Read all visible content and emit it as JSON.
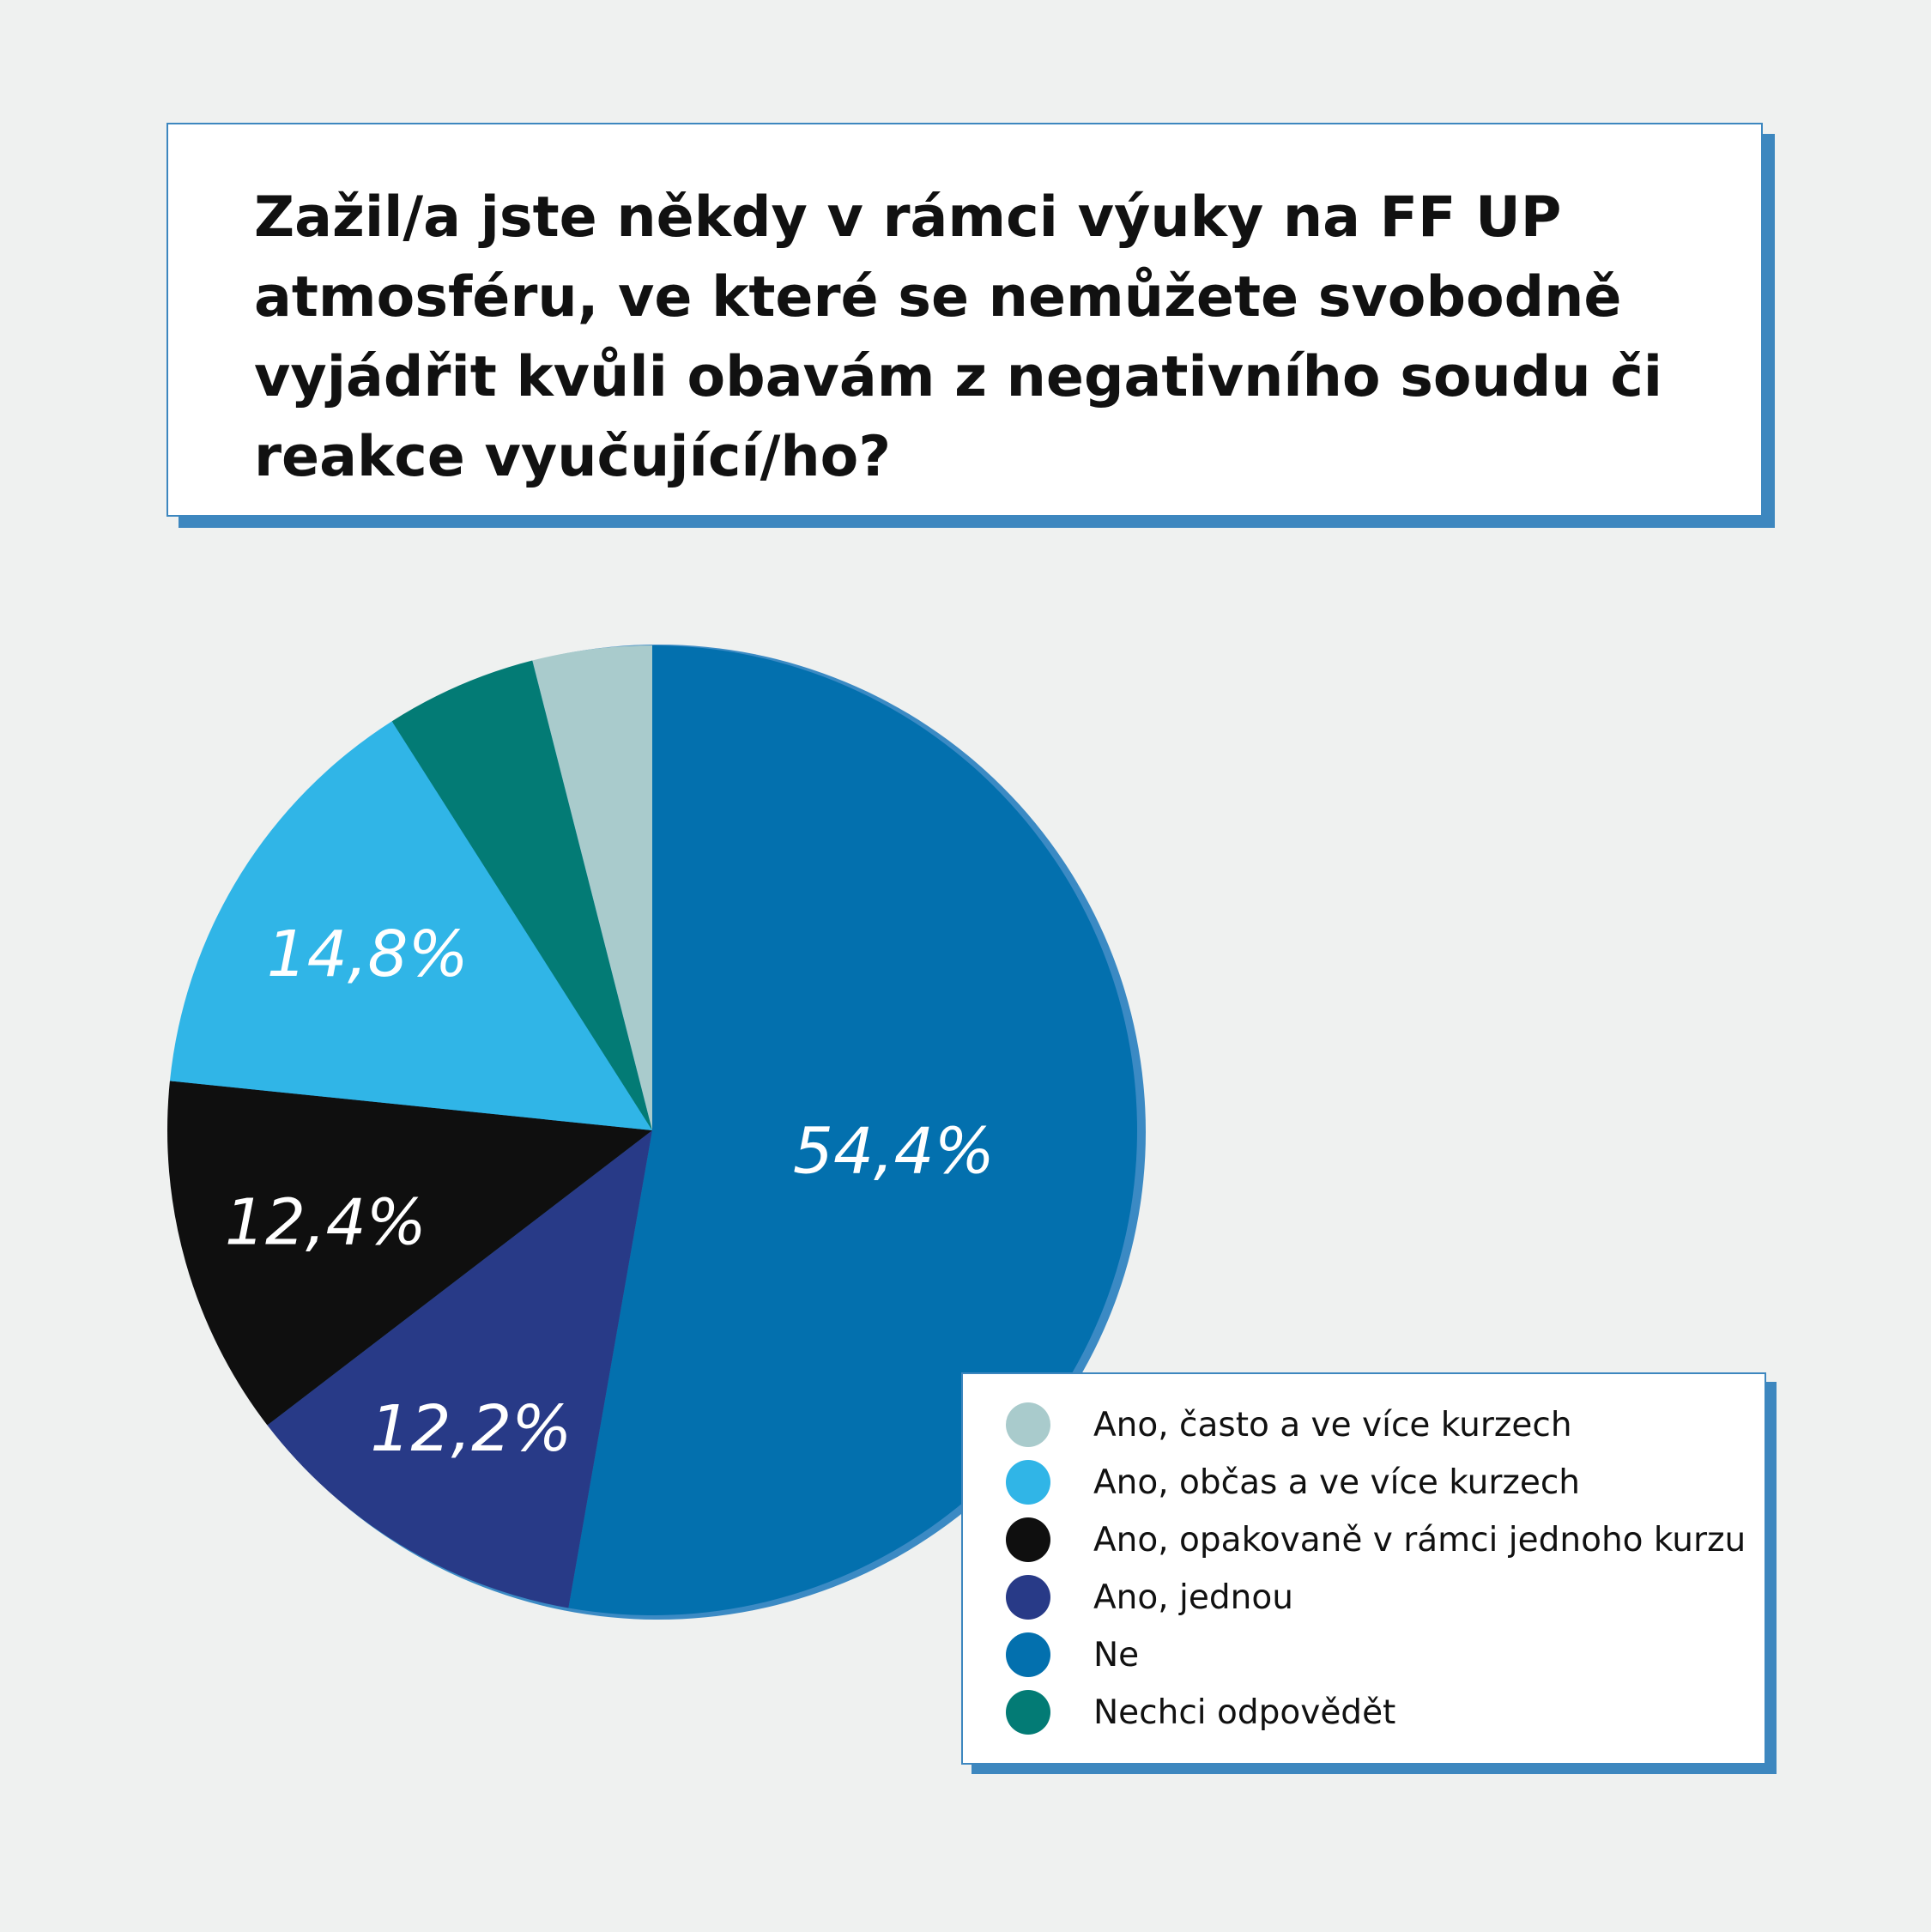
{
  "title": "Zažil/a jste někdy v rámci výuky na FF UP atmosféru, ve které se nemůžete svobodně vyjádřit kvůli obavám z negativního soudu či reakce vyučující/ho?",
  "title_lines": [
    "Zažil/a jste někdy v rámci výuky na FF UP",
    "atmosféru, ve které se nemůžete svobodně",
    "vyjádřit kvůli obavám z negativního soudu či",
    "reakce vyučující/ho?"
  ],
  "colors": {
    "background": "#eff1f0",
    "frame_accent": "#3d87bf",
    "pie_edge": "#3b8ac4"
  },
  "chart_data": {
    "type": "pie",
    "title": "Zažil/a jste někdy v rámci výuky na FF UP atmosféru, ve které se nemůžete svobodně vyjádřit kvůli obavám z negativního soudu či reakce vyučující/ho?",
    "unit": "%",
    "start": "12 o'clock, clockwise",
    "legend_position": "bottom-right",
    "slices": [
      {
        "label": "Ne",
        "value": 54.4,
        "data_label": "54,4%",
        "color": "#0370ae"
      },
      {
        "label": "Ano, jednou",
        "value": 12.2,
        "data_label": "12,2%",
        "color": "#283a87"
      },
      {
        "label": "Ano, opakovaně v rámci jednoho kurzu",
        "value": 12.4,
        "data_label": "12,4%",
        "color": "#0f0f0f"
      },
      {
        "label": "Ano, občas a ve více kurzech",
        "value": 14.8,
        "data_label": "14,8%",
        "color": "#30b5e7"
      },
      {
        "label": "Nechci odpovědět",
        "value": 5.2,
        "data_label": "",
        "color": "#037b75"
      },
      {
        "label": "Ano, často a ve více kurzech",
        "value": 4.1,
        "data_label": "",
        "color": "#a9cbcc"
      }
    ]
  },
  "legend": {
    "items": [
      {
        "label": "Ano, často a ve více kurzech",
        "color": "#a9cbcc"
      },
      {
        "label": "Ano, občas a ve více kurzech",
        "color": "#30b5e7"
      },
      {
        "label": "Ano, opakovaně v rámci jednoho kurzu",
        "color": "#0f0f0f"
      },
      {
        "label": "Ano, jednou",
        "color": "#283a87"
      },
      {
        "label": "Ne",
        "color": "#0370ae"
      },
      {
        "label": "Nechci odpovědět",
        "color": "#037b75"
      }
    ]
  }
}
